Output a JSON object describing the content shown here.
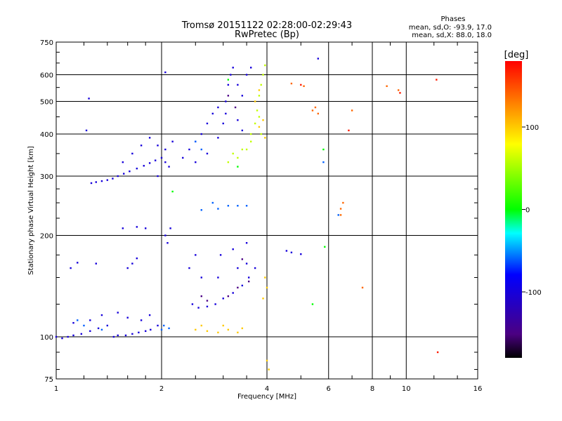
{
  "chart_data": {
    "type": "scatter",
    "title": "Tromsø 20151122 02:28:00-02:29:43",
    "subtitle": "RwPretec (Bp)",
    "xlabel": "Frequency [MHz]",
    "ylabel": "Stationary phase Virtual Height [km]",
    "x_scale": "log",
    "y_scale": "log",
    "xlim": [
      1,
      16
    ],
    "ylim": [
      75,
      750
    ],
    "x_ticks": [
      1,
      2,
      4,
      6,
      8,
      10,
      16
    ],
    "x_tick_labels": [
      "1",
      "2",
      "4",
      "6",
      "8",
      "10",
      "16"
    ],
    "y_ticks": [
      75,
      100,
      200,
      300,
      400,
      500,
      600,
      750
    ],
    "y_tick_labels": [
      "75",
      "100",
      "200",
      "300",
      "400",
      "500",
      "600",
      "750"
    ],
    "grid": true,
    "stats_header": "Phases",
    "stats_lines": [
      "mean, sd,O: -93.9, 17.0",
      "mean, sd,X:  88.0, 18.0"
    ],
    "colorbar": {
      "label": "[deg]",
      "range": [
        -180,
        180
      ],
      "ticks": [
        100,
        0,
        -100
      ],
      "tick_labels": [
        "100",
        "0",
        "-100"
      ]
    },
    "series": [
      {
        "color_value": -100,
        "points": [
          [
            1.0,
            100
          ],
          [
            1.04,
            99
          ],
          [
            1.08,
            100
          ],
          [
            1.12,
            101
          ],
          [
            1.18,
            102
          ],
          [
            1.25,
            104
          ],
          [
            1.32,
            106
          ],
          [
            1.4,
            108
          ],
          [
            1.46,
            100
          ],
          [
            1.5,
            101
          ],
          [
            1.58,
            101
          ],
          [
            1.65,
            102
          ],
          [
            1.72,
            103
          ],
          [
            1.8,
            104
          ],
          [
            1.86,
            105
          ],
          [
            1.95,
            108
          ],
          [
            1.12,
            110
          ],
          [
            1.25,
            112
          ],
          [
            1.35,
            116
          ],
          [
            1.5,
            118
          ],
          [
            1.6,
            114
          ],
          [
            1.75,
            112
          ],
          [
            1.85,
            116
          ],
          [
            1.26,
            286
          ],
          [
            1.3,
            288
          ],
          [
            1.35,
            290
          ],
          [
            1.4,
            292
          ],
          [
            1.45,
            295
          ],
          [
            1.5,
            300
          ],
          [
            1.56,
            305
          ],
          [
            1.62,
            310
          ],
          [
            1.7,
            316
          ],
          [
            1.78,
            322
          ],
          [
            1.85,
            328
          ],
          [
            1.92,
            334
          ],
          [
            2.0,
            340
          ],
          [
            2.05,
            330
          ],
          [
            2.1,
            320
          ],
          [
            1.95,
            300
          ],
          [
            1.55,
            330
          ],
          [
            1.65,
            350
          ],
          [
            1.75,
            370
          ],
          [
            1.85,
            390
          ],
          [
            1.95,
            370
          ],
          [
            2.05,
            360
          ],
          [
            2.15,
            380
          ],
          [
            2.3,
            340
          ],
          [
            2.4,
            360
          ],
          [
            2.5,
            380
          ],
          [
            2.6,
            400
          ],
          [
            2.7,
            430
          ],
          [
            2.8,
            460
          ],
          [
            2.9,
            480
          ],
          [
            2.5,
            330
          ],
          [
            2.7,
            350
          ],
          [
            2.9,
            390
          ],
          [
            3.0,
            430
          ],
          [
            3.05,
            500
          ],
          [
            3.1,
            560
          ],
          [
            3.15,
            600
          ],
          [
            3.2,
            630
          ],
          [
            3.05,
            460
          ],
          [
            3.3,
            560
          ],
          [
            3.4,
            520
          ],
          [
            3.5,
            600
          ],
          [
            3.6,
            630
          ],
          [
            3.3,
            440
          ],
          [
            3.4,
            410
          ],
          [
            2.45,
            125
          ],
          [
            2.55,
            122
          ],
          [
            2.7,
            123
          ],
          [
            2.85,
            125
          ],
          [
            3.0,
            130
          ],
          [
            3.2,
            135
          ],
          [
            3.4,
            142
          ],
          [
            3.55,
            150
          ],
          [
            3.7,
            160
          ],
          [
            3.3,
            160
          ],
          [
            3.5,
            165
          ],
          [
            2.9,
            150
          ],
          [
            2.6,
            150
          ],
          [
            2.4,
            160
          ],
          [
            2.5,
            175
          ],
          [
            2.95,
            175
          ],
          [
            3.2,
            182
          ],
          [
            3.5,
            190
          ],
          [
            1.1,
            160
          ],
          [
            1.15,
            166
          ],
          [
            1.3,
            165
          ],
          [
            1.6,
            160
          ],
          [
            1.65,
            165
          ],
          [
            1.7,
            171
          ],
          [
            1.55,
            210
          ],
          [
            1.7,
            212
          ],
          [
            1.8,
            210
          ],
          [
            2.05,
            200
          ],
          [
            2.08,
            190
          ],
          [
            2.12,
            210
          ],
          [
            1.24,
            510
          ],
          [
            1.22,
            410
          ],
          [
            2.05,
            610
          ],
          [
            5.6,
            670
          ],
          [
            4.55,
            180
          ],
          [
            4.7,
            178
          ],
          [
            5.0,
            176
          ]
        ]
      },
      {
        "color_value": -150,
        "points": [
          [
            2.7,
            128
          ],
          [
            3.1,
            132
          ],
          [
            3.3,
            140
          ],
          [
            3.55,
            146
          ],
          [
            2.6,
            132
          ],
          [
            3.4,
            170
          ],
          [
            3.25,
            480
          ],
          [
            3.1,
            520
          ]
        ]
      },
      {
        "color_value": -60,
        "points": [
          [
            1.15,
            112
          ],
          [
            1.2,
            108
          ],
          [
            1.35,
            105
          ],
          [
            2.0,
            105
          ],
          [
            2.1,
            106
          ],
          [
            2.03,
            108
          ],
          [
            2.5,
            380
          ],
          [
            2.6,
            360
          ],
          [
            2.9,
            240
          ],
          [
            3.1,
            245
          ],
          [
            3.3,
            245
          ],
          [
            3.5,
            245
          ],
          [
            2.6,
            238
          ],
          [
            2.8,
            250
          ],
          [
            5.8,
            330
          ],
          [
            6.4,
            230
          ]
        ]
      },
      {
        "color_value": 0,
        "points": [
          [
            2.15,
            270
          ],
          [
            3.1,
            580
          ],
          [
            3.3,
            320
          ],
          [
            5.4,
            125
          ],
          [
            5.8,
            360
          ],
          [
            5.85,
            185
          ]
        ]
      },
      {
        "color_value": 60,
        "points": [
          [
            3.1,
            330
          ],
          [
            3.3,
            340
          ],
          [
            3.5,
            360
          ],
          [
            3.6,
            400
          ],
          [
            3.7,
            430
          ],
          [
            3.75,
            470
          ],
          [
            3.8,
            520
          ],
          [
            3.85,
            560
          ],
          [
            3.9,
            600
          ],
          [
            3.95,
            640
          ],
          [
            3.6,
            380
          ],
          [
            3.4,
            360
          ],
          [
            3.2,
            350
          ],
          [
            3.8,
            450
          ],
          [
            3.85,
            400
          ]
        ]
      },
      {
        "color_value": 100,
        "points": [
          [
            2.5,
            105
          ],
          [
            2.7,
            104
          ],
          [
            2.9,
            103
          ],
          [
            3.1,
            105
          ],
          [
            3.3,
            103
          ],
          [
            3.4,
            106
          ],
          [
            2.6,
            108
          ],
          [
            3.0,
            108
          ],
          [
            3.9,
            130
          ],
          [
            4.0,
            140
          ],
          [
            3.95,
            150
          ],
          [
            4.0,
            85
          ],
          [
            4.05,
            80
          ],
          [
            3.8,
            420
          ],
          [
            3.9,
            440
          ],
          [
            3.95,
            390
          ],
          [
            3.7,
            500
          ],
          [
            3.8,
            540
          ]
        ]
      },
      {
        "color_value": 140,
        "points": [
          [
            5.4,
            470
          ],
          [
            5.5,
            480
          ],
          [
            5.6,
            460
          ],
          [
            6.5,
            240
          ],
          [
            6.6,
            250
          ],
          [
            6.5,
            230
          ],
          [
            4.7,
            565
          ],
          [
            5.1,
            555
          ],
          [
            8.8,
            555
          ],
          [
            9.5,
            540
          ],
          [
            7.0,
            470
          ],
          [
            7.5,
            140
          ]
        ]
      },
      {
        "color_value": 170,
        "points": [
          [
            6.85,
            410
          ],
          [
            12.2,
            580
          ],
          [
            12.3,
            90
          ],
          [
            5.0,
            560
          ],
          [
            9.6,
            530
          ]
        ]
      }
    ]
  }
}
